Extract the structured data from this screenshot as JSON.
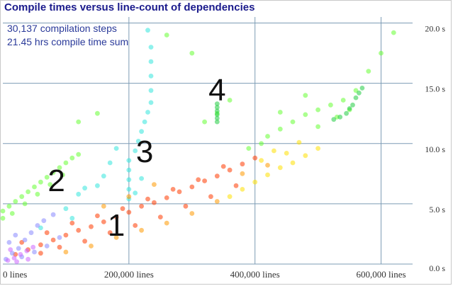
{
  "title": "Compile times versus line-count of dependencies",
  "stats": {
    "steps": "30,137 compilation steps",
    "time_sum": "21.45 hrs compile time sum"
  },
  "chart_data": {
    "type": "scatter",
    "title": "Compile times versus line-count of dependencies",
    "xlabel": "",
    "ylabel": "",
    "x_ticks": [
      "0 lines",
      "200,000 lines",
      "400,000 lines",
      "600,000 lines"
    ],
    "x_tick_values": [
      0,
      200000,
      400000,
      600000
    ],
    "y_ticks": [
      "0.0 s",
      "5.0 s",
      "10.0 s",
      "15.0 s",
      "20.0 s"
    ],
    "y_tick_values": [
      0,
      5,
      10,
      15,
      20
    ],
    "xlim": [
      0,
      650000
    ],
    "ylim": [
      0,
      20.5
    ],
    "grid": true,
    "annotations": [
      {
        "label": "1",
        "x": 180000,
        "y": 3.3
      },
      {
        "label": "2",
        "x": 85000,
        "y": 7.0
      },
      {
        "label": "3",
        "x": 225000,
        "y": 9.4
      },
      {
        "label": "4",
        "x": 340000,
        "y": 14.5
      }
    ],
    "series": [
      {
        "color": "#ff3a00",
        "points": [
          [
            20000,
            0.8
          ],
          [
            40000,
            1.2
          ],
          [
            60000,
            1.6
          ],
          [
            80000,
            2.0
          ],
          [
            100000,
            2.4
          ],
          [
            120000,
            2.8
          ],
          [
            140000,
            3.1
          ],
          [
            160000,
            3.5
          ],
          [
            180000,
            3.9
          ],
          [
            200000,
            4.3
          ],
          [
            220000,
            4.8
          ],
          [
            240000,
            5.1
          ],
          [
            260000,
            5.5
          ],
          [
            280000,
            6.0
          ],
          [
            300000,
            6.4
          ],
          [
            320000,
            6.9
          ],
          [
            340000,
            7.3
          ],
          [
            360000,
            7.8
          ],
          [
            380000,
            8.3
          ],
          [
            400000,
            8.8
          ],
          [
            60000,
            0.9
          ],
          [
            90000,
            1.4
          ],
          [
            130000,
            1.9
          ],
          [
            170000,
            2.6
          ],
          [
            210000,
            3.2
          ],
          [
            250000,
            3.9
          ],
          [
            290000,
            4.8
          ],
          [
            330000,
            5.6
          ],
          [
            370000,
            6.5
          ],
          [
            30000,
            1.8
          ],
          [
            70000,
            2.6
          ],
          [
            110000,
            3.4
          ],
          [
            150000,
            4.0
          ],
          [
            190000,
            4.6
          ],
          [
            230000,
            5.4
          ],
          [
            270000,
            6.2
          ],
          [
            310000,
            7.0
          ],
          [
            350000,
            8.1
          ]
        ]
      },
      {
        "color": "#ffe000",
        "points": [
          [
            380000,
            6.2
          ],
          [
            400000,
            6.8
          ],
          [
            420000,
            7.4
          ],
          [
            440000,
            8.0
          ],
          [
            460000,
            8.4
          ],
          [
            480000,
            9.0
          ],
          [
            500000,
            9.6
          ],
          [
            430000,
            9.4
          ],
          [
            470000,
            10.1
          ],
          [
            360000,
            5.6
          ],
          [
            410000,
            8.6
          ],
          [
            450000,
            9.2
          ]
        ]
      },
      {
        "color": "#66ff33",
        "points": [
          [
            0,
            4.4
          ],
          [
            10000,
            4.8
          ],
          [
            20000,
            5.2
          ],
          [
            30000,
            5.6
          ],
          [
            40000,
            6.0
          ],
          [
            50000,
            6.4
          ],
          [
            60000,
            6.8
          ],
          [
            70000,
            7.2
          ],
          [
            80000,
            7.6
          ],
          [
            90000,
            8.0
          ],
          [
            100000,
            8.4
          ],
          [
            110000,
            8.8
          ],
          [
            120000,
            9.1
          ],
          [
            0,
            3.8
          ],
          [
            15000,
            4.2
          ],
          [
            35000,
            5.0
          ],
          [
            55000,
            5.8
          ],
          [
            75000,
            6.6
          ],
          [
            95000,
            7.4
          ],
          [
            420000,
            10.6
          ],
          [
            440000,
            11.2
          ],
          [
            460000,
            11.8
          ],
          [
            480000,
            12.4
          ],
          [
            500000,
            12.8
          ],
          [
            520000,
            13.2
          ],
          [
            540000,
            13.6
          ],
          [
            560000,
            14.4
          ],
          [
            580000,
            16.0
          ],
          [
            600000,
            17.5
          ],
          [
            620000,
            19.2
          ],
          [
            440000,
            12.6
          ],
          [
            480000,
            14.0
          ],
          [
            500000,
            11.4
          ],
          [
            530000,
            12.2
          ],
          [
            550000,
            12.8
          ],
          [
            300000,
            17.5
          ],
          [
            260000,
            19.0
          ],
          [
            150000,
            12.5
          ],
          [
            120000,
            11.8
          ],
          [
            320000,
            11.8
          ],
          [
            340000,
            12.5
          ],
          [
            360000,
            13.6
          ],
          [
            390000,
            9.6
          ],
          [
            410000,
            10.0
          ]
        ]
      },
      {
        "color": "#22cc44",
        "points": [
          [
            340000,
            13.3
          ],
          [
            340000,
            13.0
          ],
          [
            340000,
            12.7
          ],
          [
            340000,
            12.4
          ],
          [
            340000,
            12.1
          ],
          [
            340000,
            11.8
          ],
          [
            555000,
            13.2
          ],
          [
            560000,
            13.8
          ],
          [
            565000,
            14.2
          ],
          [
            550000,
            12.9
          ],
          [
            545000,
            12.5
          ],
          [
            535000,
            12.2
          ],
          [
            525000,
            12.0
          ],
          [
            570000,
            14.6
          ]
        ]
      },
      {
        "color": "#33e6dd",
        "points": [
          [
            200000,
            5.4
          ],
          [
            200000,
            6.2
          ],
          [
            200000,
            7.0
          ],
          [
            200000,
            7.8
          ],
          [
            200000,
            8.6
          ],
          [
            210000,
            9.4
          ],
          [
            215000,
            10.2
          ],
          [
            220000,
            11.0
          ],
          [
            225000,
            11.8
          ],
          [
            230000,
            12.6
          ],
          [
            235000,
            13.4
          ],
          [
            235000,
            14.4
          ],
          [
            235000,
            15.6
          ],
          [
            235000,
            16.8
          ],
          [
            235000,
            18.0
          ],
          [
            230000,
            19.4
          ],
          [
            150000,
            6.5
          ],
          [
            160000,
            7.3
          ],
          [
            170000,
            8.4
          ],
          [
            180000,
            9.6
          ],
          [
            120000,
            5.8
          ],
          [
            130000,
            6.3
          ],
          [
            100000,
            4.6
          ],
          [
            110000,
            3.8
          ],
          [
            60000,
            3.0
          ],
          [
            210000,
            5.9
          ],
          [
            220000,
            7.1
          ]
        ]
      },
      {
        "color": "#8888ff",
        "points": [
          [
            5000,
            0.4
          ],
          [
            15000,
            0.9
          ],
          [
            25000,
            1.3
          ],
          [
            35000,
            2.0
          ],
          [
            45000,
            2.6
          ],
          [
            55000,
            3.2
          ],
          [
            65000,
            3.6
          ],
          [
            80000,
            4.1
          ],
          [
            10000,
            1.8
          ],
          [
            20000,
            2.4
          ],
          [
            30000,
            0.6
          ],
          [
            50000,
            1.0
          ],
          [
            70000,
            1.5
          ],
          [
            90000,
            2.2
          ]
        ]
      },
      {
        "color": "#cc66ff",
        "points": [
          [
            8000,
            0.3
          ],
          [
            18000,
            0.5
          ],
          [
            28000,
            0.8
          ],
          [
            38000,
            1.1
          ],
          [
            48000,
            1.4
          ],
          [
            12000,
            1.2
          ],
          [
            22000,
            0.2
          ],
          [
            40000,
            0.4
          ]
        ]
      },
      {
        "color": "#ff9900",
        "points": [
          [
            100000,
            1.0
          ],
          [
            140000,
            1.5
          ],
          [
            180000,
            2.2
          ],
          [
            220000,
            2.8
          ],
          [
            260000,
            3.4
          ],
          [
            300000,
            4.2
          ],
          [
            340000,
            5.2
          ],
          [
            380000,
            7.5
          ],
          [
            420000,
            8.2
          ],
          [
            160000,
            4.8
          ],
          [
            200000,
            5.6
          ],
          [
            240000,
            6.6
          ]
        ]
      }
    ]
  }
}
